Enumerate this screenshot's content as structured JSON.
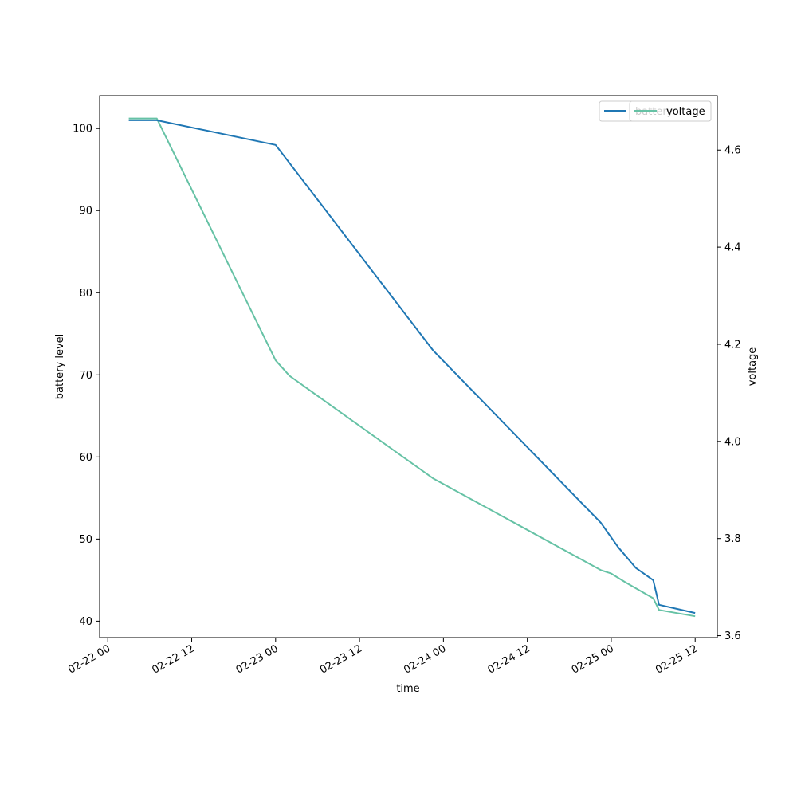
{
  "chart_data": {
    "type": "line",
    "xlabel": "time",
    "ylabel_left": "battery level",
    "ylabel_right": "voltage",
    "x_ticks": [
      "2024-02-22 00:00",
      "2024-02-22 12:00",
      "2024-02-23 00:00",
      "2024-02-23 12:00",
      "2024-02-24 00:00",
      "2024-02-24 12:00",
      "2024-02-25 00:00",
      "2024-02-25 12:00"
    ],
    "x_tick_labels": [
      "02-22 00",
      "02-22 12",
      "02-23 00",
      "02-23 12",
      "02-24 00",
      "02-24 12",
      "02-25 00",
      "02-25 12"
    ],
    "xlim": [
      "2024-02-21 22:50",
      "2024-02-25 15:10"
    ],
    "y_left_ticks": [
      40,
      50,
      60,
      70,
      80,
      90,
      100
    ],
    "y_left_tick_labels": [
      "40",
      "50",
      "60",
      "70",
      "80",
      "90",
      "100"
    ],
    "y_left_lim": [
      38,
      104
    ],
    "y_right_ticks": [
      3.6,
      3.8,
      4.0,
      4.2,
      4.4,
      4.6
    ],
    "y_right_tick_labels": [
      "3.6",
      "3.8",
      "4.0",
      "4.2",
      "4.4",
      "4.6"
    ],
    "y_right_lim": [
      3.596,
      4.712
    ],
    "legends": [
      {
        "location": "top-right",
        "entries": [
          {
            "series": "battery",
            "label": "battery",
            "color": "#1f77b4"
          }
        ]
      },
      {
        "location": "top-right",
        "entries": [
          {
            "series": "voltage",
            "label": "voltage",
            "color": "#66c2a5"
          }
        ]
      }
    ],
    "series": [
      {
        "name": "battery",
        "axis": "left",
        "color": "#1f77b4",
        "points": [
          [
            "2024-02-22 03:00",
            101
          ],
          [
            "2024-02-22 07:00",
            101
          ],
          [
            "2024-02-23 00:00",
            98
          ],
          [
            "2024-02-23 22:30",
            73
          ],
          [
            "2024-02-24 22:30",
            52
          ],
          [
            "2024-02-25 01:00",
            49
          ],
          [
            "2024-02-25 03:30",
            46.5
          ],
          [
            "2024-02-25 06:00",
            45
          ],
          [
            "2024-02-25 06:50",
            42
          ],
          [
            "2024-02-25 12:00",
            41
          ]
        ]
      },
      {
        "name": "voltage",
        "axis": "right",
        "color": "#66c2a5",
        "points": [
          [
            "2024-02-22 03:00",
            4.665
          ],
          [
            "2024-02-22 07:00",
            4.665
          ],
          [
            "2024-02-23 00:00",
            4.167
          ],
          [
            "2024-02-23 02:00",
            4.135
          ],
          [
            "2024-02-23 22:30",
            3.924
          ],
          [
            "2024-02-24 22:30",
            3.735
          ],
          [
            "2024-02-25 00:00",
            3.728
          ],
          [
            "2024-02-25 02:00",
            3.71
          ],
          [
            "2024-02-25 06:00",
            3.677
          ],
          [
            "2024-02-25 06:50",
            3.653
          ],
          [
            "2024-02-25 12:00",
            3.64
          ]
        ]
      }
    ]
  }
}
